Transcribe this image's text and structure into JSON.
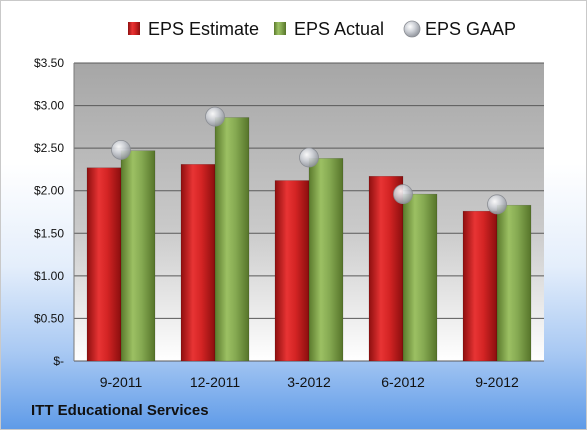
{
  "chart_data": {
    "type": "bar",
    "categories": [
      "9-2011",
      "12-2011",
      "3-2012",
      "6-2012",
      "9-2012"
    ],
    "series": [
      {
        "name": "EPS Estimate",
        "kind": "bar",
        "color": "#cc1f1f",
        "values": [
          2.27,
          2.31,
          2.12,
          2.17,
          1.76
        ]
      },
      {
        "name": "EPS Actual",
        "kind": "bar",
        "color": "#7ea04b",
        "values": [
          2.47,
          2.86,
          2.38,
          1.96,
          1.83
        ]
      },
      {
        "name": "EPS GAAP",
        "kind": "marker",
        "color": "#a8acb4",
        "values": [
          2.48,
          2.87,
          2.39,
          1.96,
          1.84
        ]
      }
    ],
    "yticks": [
      {
        "value": 0,
        "label": "$-"
      },
      {
        "value": 0.5,
        "label": "$0.50"
      },
      {
        "value": 1.0,
        "label": "$1.00"
      },
      {
        "value": 1.5,
        "label": "$1.50"
      },
      {
        "value": 2.0,
        "label": "$2.00"
      },
      {
        "value": 2.5,
        "label": "$2.50"
      },
      {
        "value": 3.0,
        "label": "$3.00"
      },
      {
        "value": 3.5,
        "label": "$3.50"
      }
    ],
    "ylim": [
      0,
      3.5
    ],
    "grid": true,
    "legend_position": "top"
  },
  "footer": {
    "title": "ITT Educational Services"
  }
}
